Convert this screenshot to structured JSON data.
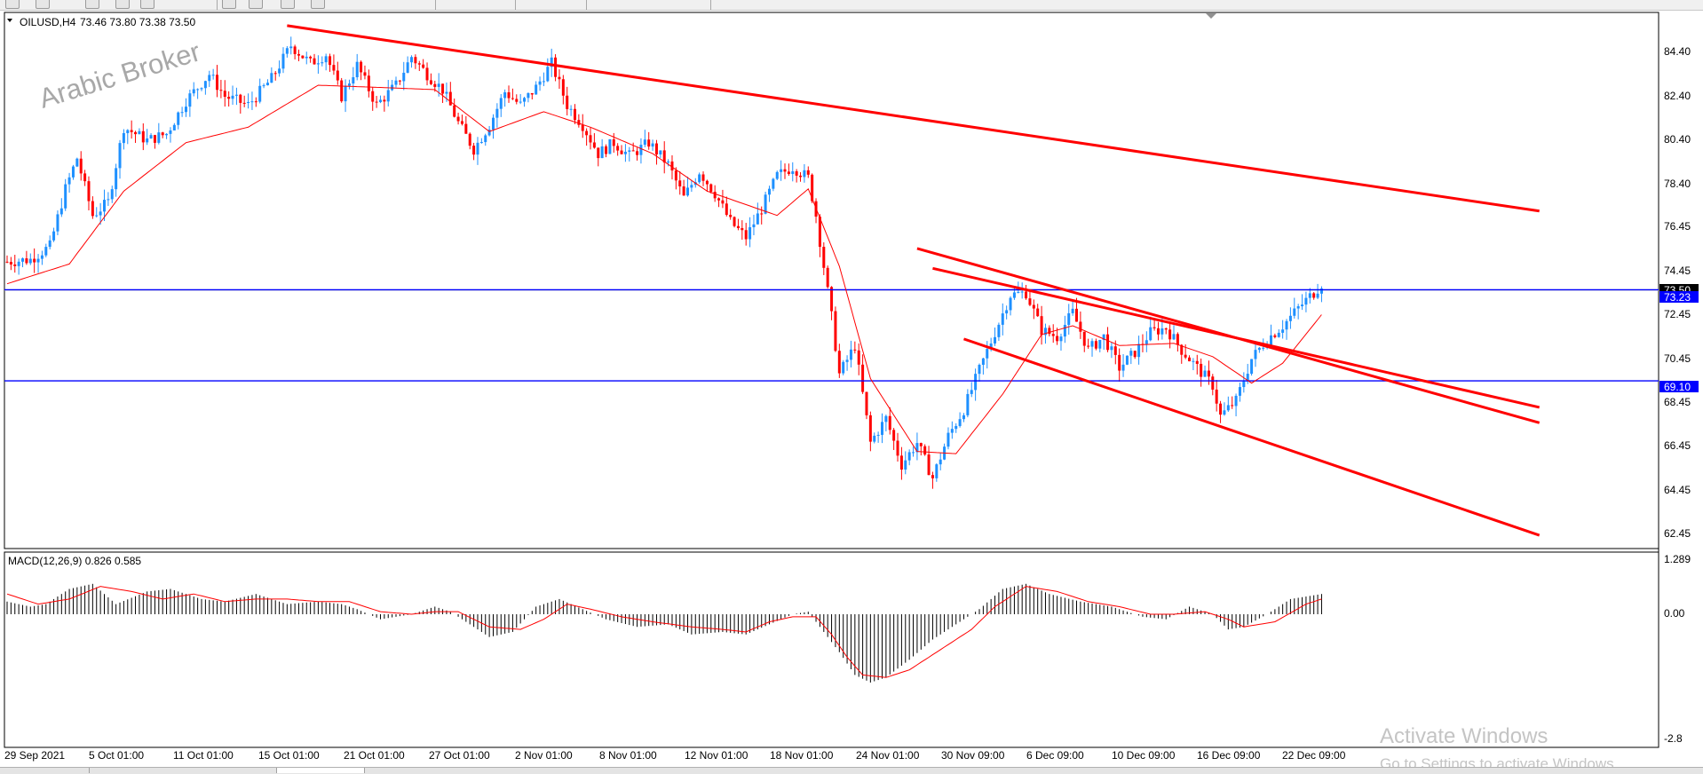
{
  "chart_header": {
    "symbol": "OILUSD,H4",
    "ohlc": "73.46 73.80 73.38 73.50",
    "watermark": "Arabic Broker"
  },
  "macd_header": "MACD(12,26,9) 0.826 0.585",
  "price_axis_labels": [
    "84.40",
    "82.40",
    "80.40",
    "78.40",
    "76.45",
    "74.45",
    "72.45",
    "70.45",
    "68.45",
    "66.45",
    "64.45",
    "62.45"
  ],
  "price_tags": [
    {
      "label": "73.50",
      "value": 73.5,
      "color": "#000000"
    },
    {
      "label": "73.23",
      "value": 73.23,
      "color": "#0000ff"
    },
    {
      "label": "69.10",
      "value": 69.1,
      "color": "#0000ff"
    }
  ],
  "macd_axis_labels": [
    "1.289",
    "0.00",
    "-2.8"
  ],
  "time_axis_labels": [
    "29 Sep 2021",
    "5 Oct 01:00",
    "11 Oct 01:00",
    "15 Oct 01:00",
    "21 Oct 01:00",
    "27 Oct 01:00",
    "2 Nov 01:00",
    "8 Nov 01:00",
    "12 Nov 01:00",
    "18 Nov 01:00",
    "24 Nov 01:00",
    "30 Nov 09:00",
    "6 Dec 09:00",
    "10 Dec 09:00",
    "16 Dec 09:00",
    "22 Dec 09:00"
  ],
  "activate_windows": {
    "title": "Activate Windows",
    "subtitle": "Go to Settings to activate Windows."
  },
  "colors": {
    "bull": "#1e90ff",
    "bear": "#ff0000",
    "ma": "#ff0000",
    "trendline": "#ff0000",
    "hline": "#0000ff",
    "macd_hist": "#000000",
    "signal": "#ff0000"
  },
  "chart_data": {
    "type": "candlestick",
    "timeframe": "H4",
    "ylim": [
      61.5,
      85.8
    ],
    "horizontal_levels": [
      73.23,
      69.1
    ],
    "price_path": [
      [
        0,
        74.5
      ],
      [
        6,
        74.6
      ],
      [
        11,
        75.2
      ],
      [
        15,
        77.8
      ],
      [
        18,
        79.2
      ],
      [
        22,
        76.6
      ],
      [
        26,
        77.2
      ],
      [
        30,
        80.6
      ],
      [
        36,
        80.0
      ],
      [
        41,
        80.3
      ],
      [
        46,
        81.8
      ],
      [
        52,
        83.0
      ],
      [
        56,
        82.0
      ],
      [
        62,
        81.6
      ],
      [
        68,
        82.8
      ],
      [
        73,
        84.3
      ],
      [
        78,
        83.5
      ],
      [
        82,
        83.9
      ],
      [
        86,
        82.0
      ],
      [
        90,
        83.4
      ],
      [
        95,
        81.6
      ],
      [
        100,
        82.5
      ],
      [
        104,
        83.8
      ],
      [
        108,
        83.0
      ],
      [
        112,
        82.3
      ],
      [
        116,
        80.8
      ],
      [
        120,
        79.6
      ],
      [
        124,
        80.7
      ],
      [
        128,
        82.2
      ],
      [
        132,
        81.6
      ],
      [
        136,
        82.4
      ],
      [
        140,
        83.5
      ],
      [
        144,
        81.6
      ],
      [
        148,
        80.7
      ],
      [
        152,
        79.4
      ],
      [
        156,
        79.9
      ],
      [
        160,
        79.3
      ],
      [
        165,
        79.9
      ],
      [
        170,
        78.9
      ],
      [
        174,
        77.4
      ],
      [
        178,
        78.6
      ],
      [
        182,
        77.6
      ],
      [
        186,
        76.3
      ],
      [
        190,
        75.6
      ],
      [
        194,
        76.9
      ],
      [
        198,
        78.4
      ],
      [
        202,
        78.8
      ],
      [
        206,
        78.3
      ],
      [
        208,
        76.6
      ],
      [
        212,
        72.0
      ],
      [
        214,
        69.4
      ],
      [
        218,
        70.7
      ],
      [
        222,
        66.3
      ],
      [
        226,
        67.4
      ],
      [
        230,
        65.3
      ],
      [
        234,
        66.3
      ],
      [
        238,
        64.7
      ],
      [
        242,
        66.6
      ],
      [
        246,
        67.8
      ],
      [
        250,
        69.6
      ],
      [
        254,
        71.3
      ],
      [
        258,
        73.0
      ],
      [
        262,
        73.1
      ],
      [
        266,
        71.4
      ],
      [
        270,
        71.1
      ],
      [
        274,
        72.2
      ],
      [
        278,
        70.5
      ],
      [
        282,
        71.1
      ],
      [
        286,
        69.7
      ],
      [
        290,
        70.4
      ],
      [
        294,
        71.3
      ],
      [
        298,
        71.5
      ],
      [
        302,
        70.5
      ],
      [
        306,
        69.7
      ],
      [
        310,
        68.9
      ],
      [
        312,
        67.5
      ],
      [
        316,
        68.2
      ],
      [
        320,
        70.1
      ],
      [
        324,
        71.0
      ],
      [
        328,
        71.6
      ],
      [
        332,
        72.4
      ],
      [
        336,
        73.1
      ],
      [
        338,
        73.5
      ]
    ],
    "moving_average": [
      [
        0,
        73.5
      ],
      [
        16,
        74.4
      ],
      [
        30,
        77.7
      ],
      [
        46,
        79.9
      ],
      [
        62,
        80.6
      ],
      [
        80,
        82.5
      ],
      [
        96,
        82.4
      ],
      [
        110,
        82.3
      ],
      [
        124,
        80.4
      ],
      [
        138,
        81.3
      ],
      [
        150,
        80.6
      ],
      [
        166,
        79.4
      ],
      [
        180,
        77.7
      ],
      [
        198,
        76.6
      ],
      [
        206,
        77.8
      ],
      [
        214,
        74.3
      ],
      [
        222,
        69.2
      ],
      [
        234,
        65.9
      ],
      [
        244,
        65.8
      ],
      [
        256,
        68.5
      ],
      [
        266,
        71.2
      ],
      [
        274,
        71.6
      ],
      [
        286,
        70.7
      ],
      [
        300,
        70.8
      ],
      [
        310,
        70.2
      ],
      [
        320,
        69.0
      ],
      [
        328,
        69.9
      ],
      [
        338,
        72.1
      ]
    ],
    "trendlines": [
      {
        "points": [
          [
            72,
            85.2
          ],
          [
            394,
            76.8
          ]
        ]
      },
      {
        "points": [
          [
            234,
            75.1
          ],
          [
            394,
            67.2
          ]
        ]
      },
      {
        "points": [
          [
            238,
            74.2
          ],
          [
            394,
            67.9
          ]
        ]
      },
      {
        "points": [
          [
            246,
            71.0
          ],
          [
            394,
            62.1
          ]
        ]
      }
    ],
    "macd": {
      "name": "MACD(12,26,9)",
      "main": 0.826,
      "signal": 0.585,
      "ylim": [
        -2.8,
        1.289
      ],
      "histogram_path": [
        [
          0,
          0.5
        ],
        [
          6,
          0.3
        ],
        [
          10,
          0.4
        ],
        [
          16,
          1.0
        ],
        [
          22,
          1.2
        ],
        [
          28,
          0.4
        ],
        [
          36,
          0.9
        ],
        [
          42,
          1.0
        ],
        [
          50,
          0.6
        ],
        [
          56,
          0.5
        ],
        [
          64,
          0.8
        ],
        [
          72,
          0.4
        ],
        [
          80,
          0.5
        ],
        [
          86,
          0.4
        ],
        [
          90,
          0.2
        ],
        [
          96,
          -0.2
        ],
        [
          104,
          0.0
        ],
        [
          110,
          0.3
        ],
        [
          114,
          0.1
        ],
        [
          118,
          -0.3
        ],
        [
          124,
          -0.9
        ],
        [
          130,
          -0.7
        ],
        [
          136,
          0.3
        ],
        [
          142,
          0.6
        ],
        [
          148,
          0.2
        ],
        [
          154,
          -0.2
        ],
        [
          162,
          -0.5
        ],
        [
          170,
          -0.4
        ],
        [
          176,
          -0.8
        ],
        [
          184,
          -0.7
        ],
        [
          190,
          -0.8
        ],
        [
          196,
          -0.4
        ],
        [
          202,
          0.0
        ],
        [
          206,
          0.1
        ],
        [
          210,
          -0.7
        ],
        [
          214,
          -1.5
        ],
        [
          218,
          -2.4
        ],
        [
          222,
          -2.7
        ],
        [
          226,
          -2.5
        ],
        [
          232,
          -1.8
        ],
        [
          238,
          -1.0
        ],
        [
          244,
          -0.4
        ],
        [
          250,
          0.2
        ],
        [
          256,
          1.0
        ],
        [
          262,
          1.2
        ],
        [
          268,
          0.8
        ],
        [
          276,
          0.5
        ],
        [
          284,
          0.3
        ],
        [
          292,
          -0.1
        ],
        [
          298,
          -0.2
        ],
        [
          304,
          0.3
        ],
        [
          310,
          0.0
        ],
        [
          314,
          -0.6
        ],
        [
          318,
          -0.5
        ],
        [
          324,
          0.0
        ],
        [
          330,
          0.6
        ],
        [
          338,
          0.8
        ]
      ],
      "signal_path": [
        [
          0,
          0.8
        ],
        [
          8,
          0.4
        ],
        [
          16,
          0.6
        ],
        [
          24,
          1.1
        ],
        [
          32,
          0.9
        ],
        [
          40,
          0.6
        ],
        [
          48,
          0.8
        ],
        [
          56,
          0.5
        ],
        [
          64,
          0.6
        ],
        [
          72,
          0.6
        ],
        [
          80,
          0.5
        ],
        [
          88,
          0.5
        ],
        [
          96,
          0.1
        ],
        [
          104,
          0.0
        ],
        [
          110,
          0.1
        ],
        [
          116,
          0.1
        ],
        [
          124,
          -0.5
        ],
        [
          132,
          -0.6
        ],
        [
          138,
          -0.2
        ],
        [
          144,
          0.4
        ],
        [
          150,
          0.2
        ],
        [
          158,
          -0.1
        ],
        [
          166,
          -0.3
        ],
        [
          176,
          -0.5
        ],
        [
          184,
          -0.6
        ],
        [
          190,
          -0.7
        ],
        [
          196,
          -0.3
        ],
        [
          202,
          -0.1
        ],
        [
          208,
          -0.1
        ],
        [
          212,
          -0.8
        ],
        [
          216,
          -1.7
        ],
        [
          220,
          -2.4
        ],
        [
          226,
          -2.5
        ],
        [
          232,
          -2.2
        ],
        [
          240,
          -1.4
        ],
        [
          248,
          -0.6
        ],
        [
          254,
          0.3
        ],
        [
          262,
          1.1
        ],
        [
          270,
          0.9
        ],
        [
          278,
          0.5
        ],
        [
          286,
          0.3
        ],
        [
          294,
          0.0
        ],
        [
          300,
          0.0
        ],
        [
          308,
          0.1
        ],
        [
          314,
          -0.2
        ],
        [
          318,
          -0.5
        ],
        [
          326,
          -0.3
        ],
        [
          334,
          0.4
        ],
        [
          338,
          0.6
        ]
      ]
    }
  }
}
